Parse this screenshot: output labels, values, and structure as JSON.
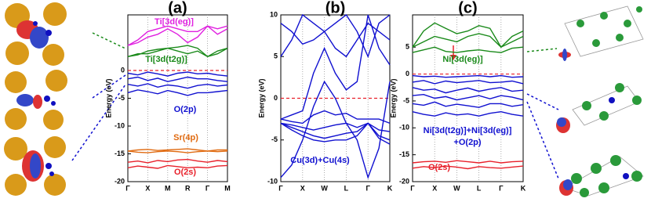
{
  "chart_data": [
    {
      "type": "line",
      "title": "(a)",
      "y_label": "Energy (eV)",
      "categories": [
        "Γ",
        null,
        "X",
        null,
        "M",
        null,
        "R",
        null,
        "Γ",
        null,
        "M"
      ],
      "ylim": [
        -20,
        10
      ],
      "yticks": [
        -20,
        -15,
        -10,
        -5,
        0
      ],
      "grid": true,
      "hline": 0,
      "hline_color": "#e8202a",
      "annotations": [
        {
          "text": "Ti[3d(eg)]",
          "color": "#e020e0"
        },
        {
          "text": "Ti[3d(t2g)]",
          "color": "#1a8a1a"
        },
        {
          "text": "O(2p)",
          "color": "#1010d0"
        },
        {
          "text": "Sr(4p)",
          "color": "#e06a10"
        },
        {
          "text": "O(2s)",
          "color": "#e8202a"
        }
      ],
      "series": [
        {
          "color": "#e020e0",
          "values": [
            4.5,
            5,
            6,
            6.5,
            7.5,
            6.5,
            5,
            6,
            8,
            6.5,
            7.5
          ]
        },
        {
          "color": "#e020e0",
          "values": [
            4.5,
            5.5,
            7,
            7.5,
            8,
            7.5,
            7,
            7,
            8,
            7.5,
            8
          ]
        },
        {
          "color": "#1a8a1a",
          "values": [
            2.5,
            3,
            3,
            3.5,
            4,
            3.5,
            3,
            3.5,
            2.5,
            3,
            4
          ]
        },
        {
          "color": "#1a8a1a",
          "values": [
            2.5,
            2.8,
            3.5,
            3.8,
            4,
            4.2,
            4.5,
            4,
            2.5,
            3.5,
            4
          ]
        },
        {
          "color": "#1010d0",
          "values": [
            -0.5,
            -0.8,
            -0.3,
            -0.6,
            -1,
            -0.5,
            -0.3,
            -0.6,
            -0.5,
            -0.8,
            -1
          ]
        },
        {
          "color": "#1010d0",
          "values": [
            -1.5,
            -1.2,
            -1.8,
            -1.4,
            -2,
            -1.6,
            -1.2,
            -1.5,
            -1.5,
            -1.8,
            -2
          ]
        },
        {
          "color": "#1010d0",
          "values": [
            -2.5,
            -2.8,
            -2.4,
            -3,
            -2.6,
            -2.8,
            -3.2,
            -2.7,
            -2.5,
            -2.8,
            -2.6
          ]
        },
        {
          "color": "#1010d0",
          "values": [
            -4,
            -3.5,
            -3.8,
            -4.2,
            -3.6,
            -4,
            -4.5,
            -4,
            -4,
            -3.8,
            -3.6
          ]
        },
        {
          "color": "#e06a10",
          "values": [
            -14.5,
            -14.3,
            -14.2,
            -14.4,
            -14.3,
            -14.2,
            -14.1,
            -14.3,
            -14.5,
            -14.3,
            -14.3
          ]
        },
        {
          "color": "#e06a10",
          "values": [
            -14.5,
            -14.7,
            -14.8,
            -14.6,
            -14.5,
            -14.6,
            -14.8,
            -14.6,
            -14.5,
            -14.6,
            -14.5
          ]
        },
        {
          "color": "#e8202a",
          "values": [
            -16.5,
            -16.3,
            -16.6,
            -16.2,
            -16.4,
            -16.1,
            -16,
            -16.3,
            -16.5,
            -16.2,
            -16.4
          ]
        },
        {
          "color": "#e8202a",
          "values": [
            -17.5,
            -17.2,
            -17.4,
            -17.6,
            -17.1,
            -17.3,
            -17.5,
            -17.4,
            -17.5,
            -17.2,
            -17.1
          ]
        }
      ]
    },
    {
      "type": "line",
      "title": "(b)",
      "y_label": "Energy (eV)",
      "categories": [
        "Γ",
        null,
        "X",
        null,
        "W",
        null,
        "L",
        null,
        "Γ",
        null,
        "K"
      ],
      "ylim": [
        -10,
        10
      ],
      "yticks": [
        -10,
        -5,
        0,
        5,
        10
      ],
      "grid": true,
      "hline": 0,
      "hline_color": "#e8202a",
      "annotations": [
        {
          "text": "Cu(3d)+Cu(4s)",
          "color": "#1010d0"
        }
      ],
      "series": [
        {
          "color": "#1010d0",
          "values": [
            -9.5,
            -8,
            -5,
            -1,
            2,
            0,
            -3,
            -5,
            -9.5,
            -6,
            2
          ]
        },
        {
          "color": "#1010d0",
          "values": [
            -2.5,
            -2,
            -1.5,
            3,
            6,
            3,
            1,
            2,
            10,
            6,
            4
          ]
        },
        {
          "color": "#1010d0",
          "values": [
            -2.5,
            -2.8,
            -3,
            -2,
            -1.5,
            -2,
            -1.8,
            -2.5,
            -2.5,
            -2.5,
            -3
          ]
        },
        {
          "color": "#1010d0",
          "values": [
            -3,
            -3.2,
            -3.5,
            -3.8,
            -3.5,
            -3.2,
            -3,
            -3.5,
            -3,
            -3.8,
            -4
          ]
        },
        {
          "color": "#1010d0",
          "values": [
            -3,
            -3.5,
            -4,
            -4.5,
            -4.8,
            -4.5,
            -4.2,
            -4,
            -3,
            -4.5,
            -5
          ]
        },
        {
          "color": "#1010d0",
          "values": [
            -3,
            -3.8,
            -4.5,
            -5,
            -5.2,
            -5,
            -5,
            -4.5,
            -3,
            -4.8,
            -5.5
          ]
        },
        {
          "color": "#1010d0",
          "values": [
            5,
            7,
            10,
            9,
            8,
            9,
            10,
            8,
            5,
            9,
            10
          ]
        },
        {
          "color": "#1010d0",
          "values": [
            9,
            8,
            6.5,
            7,
            8,
            6,
            5,
            7,
            9,
            8,
            7
          ]
        }
      ]
    },
    {
      "type": "line",
      "title": "(c)",
      "y_label": "Energy (eV)",
      "categories": [
        "Γ",
        null,
        "X",
        null,
        "W",
        null,
        "L",
        null,
        "Γ",
        null,
        "K"
      ],
      "ylim": [
        -20,
        11
      ],
      "yticks": [
        -20,
        -15,
        -10,
        -5,
        0,
        5
      ],
      "grid": true,
      "hline": 0,
      "hline_color": "#e8202a",
      "annotations": [
        {
          "text": "Ni[3d(eg)]",
          "color": "#1a8a1a"
        },
        {
          "text": "Ni[3d(t2g)]+Ni[3d(eg)]",
          "color": "#1010d0"
        },
        {
          "text": "+O(2p)",
          "color": "#1010d0"
        },
        {
          "text": "O(2s)",
          "color": "#e8202a"
        }
      ],
      "series": [
        {
          "color": "#1a8a1a",
          "values": [
            5,
            8,
            9.5,
            8.5,
            7.5,
            8,
            9,
            8.5,
            5,
            7,
            8
          ]
        },
        {
          "color": "#1a8a1a",
          "values": [
            5,
            6,
            7,
            6.5,
            6,
            7,
            7.5,
            7,
            5,
            6,
            7
          ]
        },
        {
          "color": "#1a8a1a",
          "values": [
            4,
            4.5,
            5,
            4.2,
            4,
            4.3,
            4.5,
            4.2,
            4,
            4.8,
            5
          ]
        },
        {
          "color": "#1010d0",
          "values": [
            -0.3,
            -0.5,
            -0.4,
            -0.6,
            -0.5,
            -0.4,
            -0.3,
            -0.5,
            -0.3,
            -0.6,
            -0.5
          ]
        },
        {
          "color": "#1010d0",
          "values": [
            -1.5,
            -1.2,
            -1.8,
            -1.3,
            -1.6,
            -1.4,
            -1.2,
            -1.6,
            -1.5,
            -1.3,
            -1.8
          ]
        },
        {
          "color": "#1010d0",
          "values": [
            -2.5,
            -3,
            -2.8,
            -3.5,
            -3,
            -2.6,
            -3.2,
            -2.8,
            -2.5,
            -3.2,
            -3
          ]
        },
        {
          "color": "#1010d0",
          "values": [
            -4,
            -3.8,
            -4.5,
            -4.2,
            -4.8,
            -4.4,
            -4,
            -4.6,
            -4,
            -4.3,
            -4.8
          ]
        },
        {
          "color": "#1010d0",
          "values": [
            -5.5,
            -5.8,
            -5.2,
            -6,
            -5.6,
            -5.9,
            -6.2,
            -5.5,
            -5.5,
            -6,
            -5.7
          ]
        },
        {
          "color": "#1010d0",
          "values": [
            -7,
            -7.5,
            -7.8,
            -7.2,
            -7.6,
            -7.4,
            -7.8,
            -7.3,
            -7,
            -7.5,
            -7.8
          ]
        },
        {
          "color": "#e8202a",
          "values": [
            -16.5,
            -16.3,
            -16.2,
            -16.4,
            -16.1,
            -16.3,
            -16.5,
            -16.2,
            -16.5,
            -16.3,
            -16.2
          ]
        },
        {
          "color": "#e8202a",
          "values": [
            -17.5,
            -17.2,
            -17.4,
            -17.1,
            -17.3,
            -17.6,
            -17.2,
            -17.4,
            -17.5,
            -17.3,
            -17.1
          ]
        }
      ]
    }
  ]
}
